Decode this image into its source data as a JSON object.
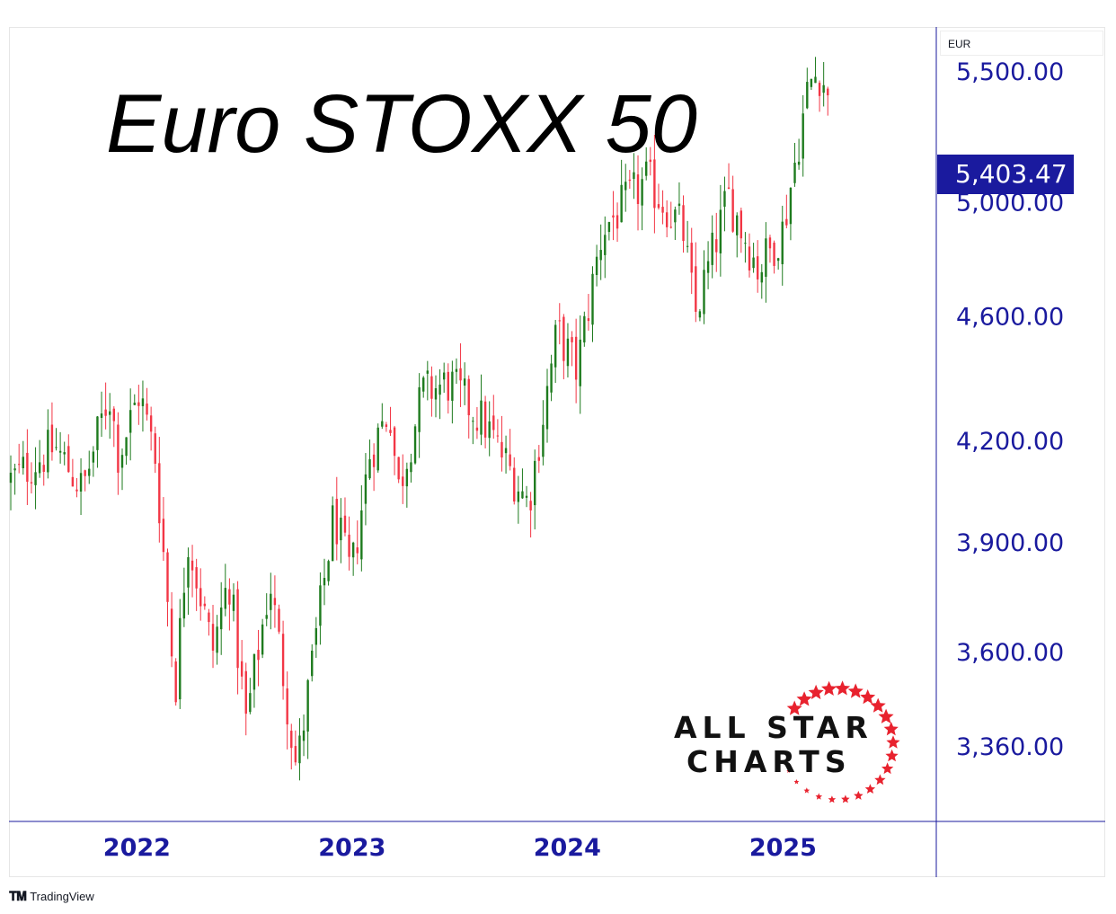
{
  "header": {
    "title": "Euro STOXX 50",
    "currency": "EUR"
  },
  "price_tag": {
    "value": "5,403.47",
    "color": "#1a1a9e"
  },
  "brand": {
    "line1": "ALL STAR",
    "line2": "CHARTS",
    "star_color": "#e8222e"
  },
  "footer": {
    "logo_icon": "tradingview-logo-icon",
    "label": "TradingView"
  },
  "colors": {
    "up": "#1e7b1e",
    "down": "#f23645",
    "axis_text": "#1a1a9e",
    "axis_line": "#1a1a9e"
  },
  "chart_data": {
    "type": "candlestick",
    "title": "Euro STOXX 50",
    "y_scale": "log",
    "ylim": [
      3180,
      5680
    ],
    "y_ticks": [
      {
        "value": 3360,
        "label": "3,360.00"
      },
      {
        "value": 3600,
        "label": "3,600.00"
      },
      {
        "value": 3900,
        "label": "3,900.00"
      },
      {
        "value": 4200,
        "label": "4,200.00"
      },
      {
        "value": 4600,
        "label": "4,600.00"
      },
      {
        "value": 5000,
        "label": "5,000.00"
      },
      {
        "value": 5500,
        "label": "5,500.00"
      }
    ],
    "x_ticks": [
      "2022",
      "2023",
      "2024",
      "2025"
    ],
    "last_price": 5403.47,
    "interval": "weekly",
    "anchors": [
      {
        "date": "2021-06-01",
        "close": 4080
      },
      {
        "date": "2021-08-15",
        "close": 4180
      },
      {
        "date": "2021-10-01",
        "close": 4050
      },
      {
        "date": "2021-11-15",
        "close": 4350
      },
      {
        "date": "2021-12-01",
        "close": 4150
      },
      {
        "date": "2022-01-05",
        "close": 4350
      },
      {
        "date": "2022-02-01",
        "close": 4150
      },
      {
        "date": "2022-03-07",
        "close": 3500
      },
      {
        "date": "2022-03-28",
        "close": 3920
      },
      {
        "date": "2022-05-09",
        "close": 3600
      },
      {
        "date": "2022-06-06",
        "close": 3800
      },
      {
        "date": "2022-07-05",
        "close": 3420
      },
      {
        "date": "2022-08-15",
        "close": 3790
      },
      {
        "date": "2022-09-29",
        "close": 3300
      },
      {
        "date": "2022-12-01",
        "close": 3980
      },
      {
        "date": "2022-12-30",
        "close": 3800
      },
      {
        "date": "2023-01-31",
        "close": 4160
      },
      {
        "date": "2023-03-06",
        "close": 4300
      },
      {
        "date": "2023-03-20",
        "close": 4050
      },
      {
        "date": "2023-05-01",
        "close": 4350
      },
      {
        "date": "2023-06-15",
        "close": 4380
      },
      {
        "date": "2023-08-15",
        "close": 4250
      },
      {
        "date": "2023-10-27",
        "close": 4010
      },
      {
        "date": "2023-12-15",
        "close": 4550
      },
      {
        "date": "2024-01-17",
        "close": 4420
      },
      {
        "date": "2024-03-01",
        "close": 4900
      },
      {
        "date": "2024-05-15",
        "close": 5080
      },
      {
        "date": "2024-07-15",
        "close": 4900
      },
      {
        "date": "2024-08-05",
        "close": 4600
      },
      {
        "date": "2024-09-30",
        "close": 5020
      },
      {
        "date": "2024-11-20",
        "close": 4760
      },
      {
        "date": "2025-01-01",
        "close": 4900
      },
      {
        "date": "2025-02-14",
        "close": 5450
      },
      {
        "date": "2025-03-03",
        "close": 5500
      },
      {
        "date": "2025-03-21",
        "close": 5403.47
      }
    ]
  }
}
